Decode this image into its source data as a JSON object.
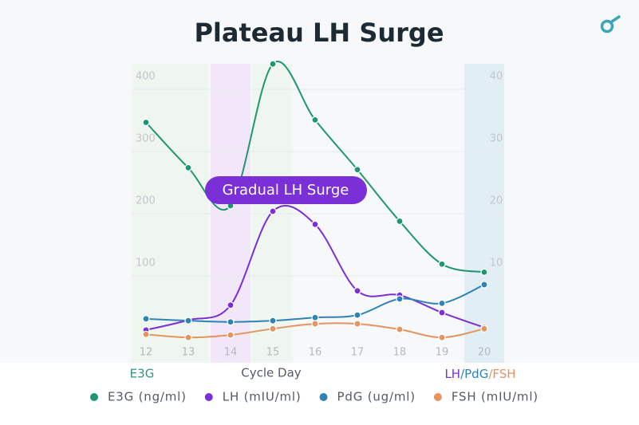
{
  "chart_data": {
    "type": "line",
    "title": "Plateau LH Surge",
    "annotation": "Gradual LH Surge",
    "xlabel": "Cycle Day",
    "ylabel": "E3G",
    "y2label": [
      "LH",
      "/PdG",
      "/FSH"
    ],
    "y2label_colors": [
      "#7b2fd6",
      "#2d83b5",
      "#e5935f"
    ],
    "ylabel_color": "#2e9a74",
    "categories": [
      "12",
      "13",
      "14",
      "15",
      "16",
      "17",
      "18",
      "19",
      "20"
    ],
    "ylim": [
      0,
      440
    ],
    "yticks": [
      100,
      200,
      300,
      400
    ],
    "y2lim": [
      0,
      44
    ],
    "y2ticks": [
      10,
      20,
      30,
      40
    ],
    "grid": true,
    "legend": "bottom",
    "series": [
      {
        "name": "E3G (ng/ml)",
        "color": "#1f9672",
        "values": [
          347,
          274,
          213,
          441,
          351,
          271,
          188,
          119,
          106
        ]
      },
      {
        "name": "LH (mIU/ml)",
        "color": "#7b2fd6",
        "axis": "y2",
        "values": [
          1.3,
          2.9,
          5.3,
          20.4,
          18.3,
          7.6,
          6.9,
          4.1,
          1.7
        ]
      },
      {
        "name": "PdG (ug/ml)",
        "color": "#2d83b5",
        "axis": "y2",
        "values": [
          3.1,
          2.8,
          2.6,
          2.8,
          3.3,
          3.7,
          6.3,
          5.6,
          8.6
        ]
      },
      {
        "name": "FSH (mIU/ml)",
        "color": "#e5935f",
        "axis": "y2",
        "values": [
          0.6,
          0.1,
          0.5,
          1.5,
          2.3,
          2.3,
          1.4,
          0.1,
          1.5
        ]
      }
    ]
  }
}
